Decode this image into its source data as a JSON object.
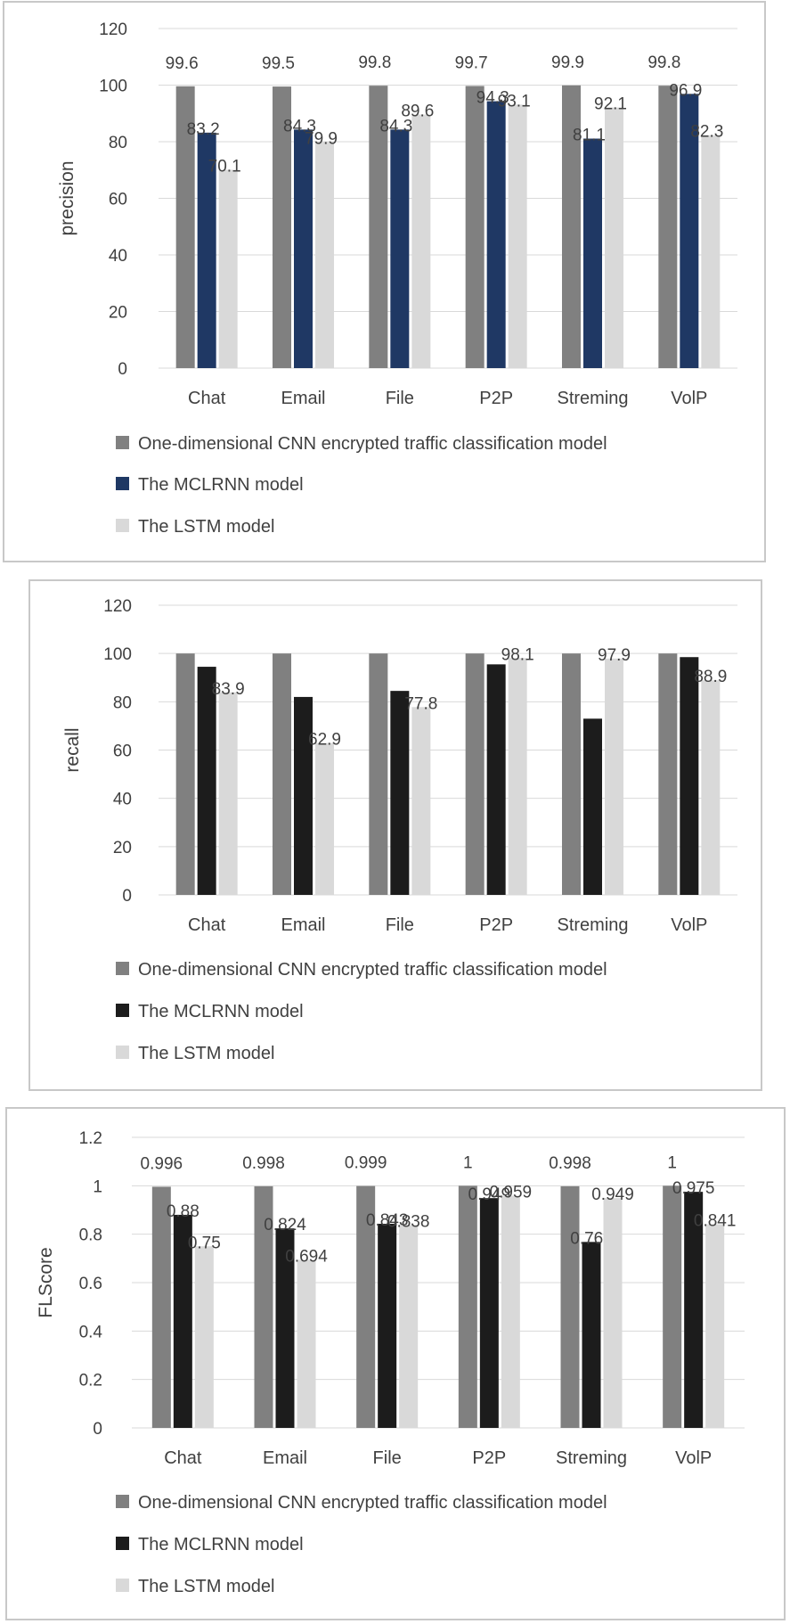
{
  "chart_data": [
    {
      "type": "bar",
      "ylabel": "precision",
      "ylim": [
        0,
        120
      ],
      "yticks": [
        "0",
        "20",
        "40",
        "60",
        "80",
        "100",
        "120"
      ],
      "categories": [
        "Chat",
        "Email",
        "File",
        "P2P",
        "Streming",
        "VolP"
      ],
      "grid": true,
      "legend_position": "bottom",
      "series": [
        {
          "name": "One-dimensional CNN encrypted traffic classification model",
          "color": "#808080",
          "values": [
            99.6,
            99.5,
            99.8,
            99.7,
            99.9,
            99.8
          ],
          "labels": [
            "99.6",
            "99.5",
            "99.8",
            "99.7",
            "99.9",
            "99.8"
          ]
        },
        {
          "name": "The MCLRNN model",
          "color": "#1f3864",
          "values": [
            83.2,
            84.3,
            84.3,
            94.3,
            81.1,
            96.9
          ],
          "labels": [
            "83.2",
            "84.3",
            "84.3",
            "94.3",
            "81.1",
            "96.9"
          ]
        },
        {
          "name": "The LSTM model",
          "color": "#d9d9d9",
          "values": [
            70.1,
            79.9,
            89.6,
            93.1,
            92.1,
            82.3
          ],
          "labels": [
            "70.1",
            "79.9",
            "89.6",
            "93.1",
            "92.1",
            "82.3"
          ]
        }
      ]
    },
    {
      "type": "bar",
      "ylabel": "recall",
      "ylim": [
        0,
        120
      ],
      "yticks": [
        "0",
        "20",
        "40",
        "60",
        "80",
        "100",
        "120"
      ],
      "categories": [
        "Chat",
        "Email",
        "File",
        "P2P",
        "Streming",
        "VolP"
      ],
      "grid": true,
      "legend_position": "bottom",
      "series": [
        {
          "name": "One-dimensional CNN encrypted traffic classification model",
          "color": "#808080",
          "values": [
            100,
            100,
            100,
            100,
            100,
            100
          ],
          "labels": [
            "",
            "",
            "",
            "",
            "",
            ""
          ]
        },
        {
          "name": "The MCLRNN model",
          "color": "#1c1c1c",
          "values": [
            94.5,
            82,
            84.5,
            95.5,
            73,
            98.5
          ],
          "labels": [
            "",
            "",
            "",
            "",
            "",
            ""
          ]
        },
        {
          "name": "The LSTM model",
          "color": "#d9d9d9",
          "values": [
            83.9,
            62.9,
            77.8,
            98.1,
            97.9,
            88.9
          ],
          "labels": [
            "83.9",
            "62.9",
            "77.8",
            "98.1",
            "97.9",
            "88.9"
          ]
        }
      ]
    },
    {
      "type": "bar",
      "ylabel": "FLScore",
      "ylim": [
        0,
        1.2
      ],
      "yticks": [
        "0",
        "0.2",
        "0.4",
        "0.6",
        "0.8",
        "1",
        "1.2"
      ],
      "categories": [
        "Chat",
        "Email",
        "File",
        "P2P",
        "Streming",
        "VolP"
      ],
      "grid": true,
      "legend_position": "bottom",
      "series": [
        {
          "name": "One-dimensional CNN encrypted traffic classification model",
          "color": "#808080",
          "values": [
            0.996,
            0.998,
            0.999,
            1,
            0.998,
            1
          ],
          "labels": [
            "0.996",
            "0.998",
            "0.999",
            "1",
            "0.998",
            "1"
          ]
        },
        {
          "name": "The MCLRNN model",
          "color": "#1c1c1c",
          "values": [
            0.88,
            0.824,
            0.843,
            0.949,
            0.768,
            0.975
          ],
          "labels": [
            "0.88",
            "0.824",
            "0.843",
            "0.949",
            "0.768",
            "0.975"
          ]
        },
        {
          "name": "The LSTM model",
          "color": "#d9d9d9",
          "values": [
            0.75,
            0.694,
            0.838,
            0.959,
            0.949,
            0.841
          ],
          "labels": [
            "0.75",
            "0.694",
            "0.838",
            "0.959",
            "0.949",
            "0.841"
          ]
        }
      ]
    }
  ]
}
